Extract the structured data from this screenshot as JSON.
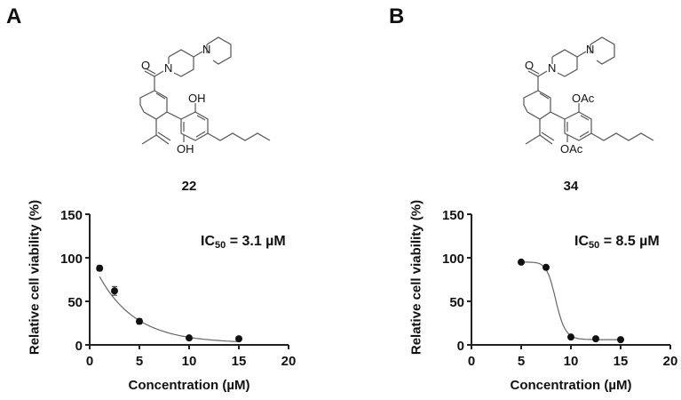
{
  "panels": [
    {
      "letter": "A",
      "compound": "22",
      "substituent_top": "OH",
      "substituent_bottom": "OH",
      "ic50_prefix": "IC",
      "ic50_sub": "50",
      "ic50_suffix": " = 3.1 µM"
    },
    {
      "letter": "B",
      "compound": "34",
      "substituent_top": "OAc",
      "substituent_bottom": "OAc",
      "ic50_prefix": "IC",
      "ic50_sub": "50",
      "ic50_suffix": " = 8.5 µM"
    }
  ],
  "structure_atoms": {
    "carbonyl_o": "O",
    "amide_n": "N",
    "piperidine_n": "N"
  },
  "chart_data": [
    {
      "type": "scatter",
      "panel": "A",
      "title": "",
      "annotation": "IC50 = 3.1 µM",
      "xlabel": "Concentration (µM)",
      "ylabel": "Relative cell viability (%)",
      "xlim": [
        0,
        20
      ],
      "ylim": [
        0,
        150
      ],
      "xticks": [
        "0",
        "5",
        "10",
        "15",
        "20"
      ],
      "yticks": [
        "0",
        "50",
        "100",
        "150"
      ],
      "grid": false,
      "series": [
        {
          "name": "22",
          "x": [
            1,
            2.5,
            5,
            10,
            15
          ],
          "y": [
            88,
            62,
            27,
            8,
            7
          ],
          "err": [
            3,
            5,
            3,
            1,
            1
          ],
          "fit": "dose-response curve"
        }
      ]
    },
    {
      "type": "scatter",
      "panel": "B",
      "title": "",
      "annotation": "IC50 = 8.5 µM",
      "xlabel": "Concentration (µM)",
      "ylabel": "Relative cell viability (%)",
      "xlim": [
        0,
        20
      ],
      "ylim": [
        0,
        150
      ],
      "xticks": [
        "0",
        "5",
        "10",
        "15",
        "20"
      ],
      "yticks": [
        "0",
        "50",
        "100",
        "150"
      ],
      "grid": false,
      "series": [
        {
          "name": "34",
          "x": [
            5,
            7.5,
            10,
            12.5,
            15
          ],
          "y": [
            95,
            89,
            9,
            7,
            6
          ],
          "err": [
            0,
            0,
            0,
            0,
            0
          ],
          "fit": "dose-response curve"
        }
      ]
    }
  ]
}
